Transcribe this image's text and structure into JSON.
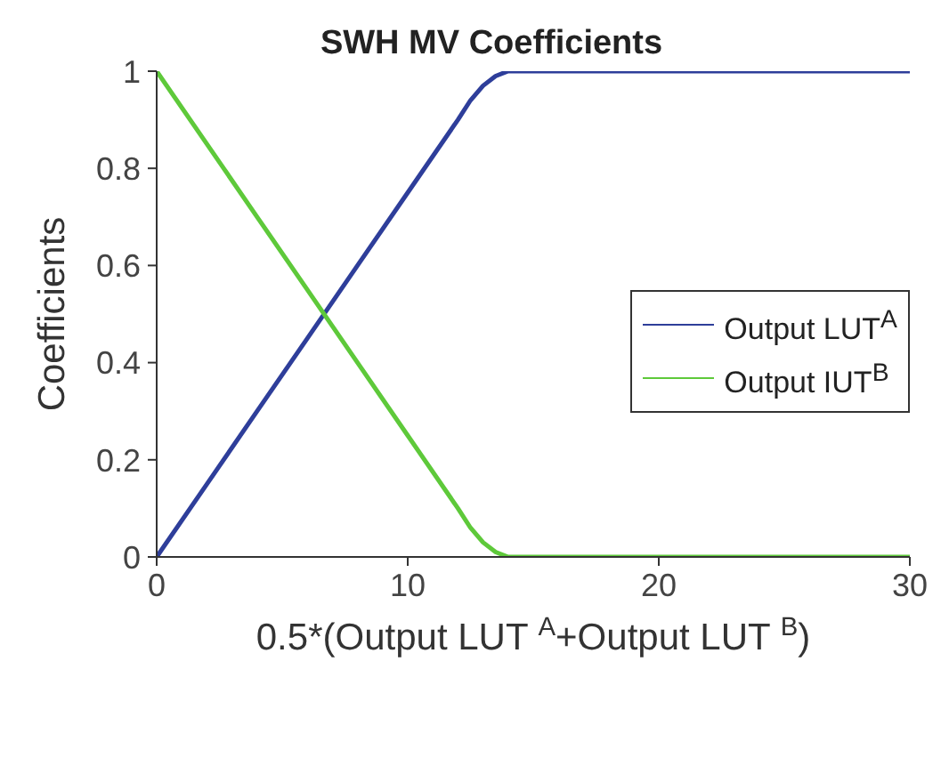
{
  "chart_data": {
    "type": "line",
    "title": "SWH MV Coefficients",
    "xlabel": "0.5*(Output LUT $^{A}$+Output LUT $^{B}$)",
    "ylabel": "Coefficients",
    "xlim": [
      0,
      30
    ],
    "xticks": [
      0,
      10,
      20,
      30
    ],
    "ylim": [
      0,
      1
    ],
    "yticks": [
      0,
      0.2,
      0.4,
      0.6,
      0.8,
      1
    ],
    "grid": false,
    "legend": "right",
    "marker": "none",
    "line_style": "solid",
    "series": [
      {
        "name": "Output LUT$^{A}$",
        "color": "#2e3e9a",
        "x": [
          0,
          2,
          4,
          6,
          8,
          10,
          12,
          12.5,
          13,
          13.5,
          14,
          20,
          30
        ],
        "values": [
          0,
          0.15,
          0.3,
          0.45,
          0.6,
          0.75,
          0.9,
          0.94,
          0.97,
          0.99,
          1,
          1,
          1
        ]
      },
      {
        "name": "Output IUT$^{B}$",
        "color": "#5ec93a",
        "x": [
          0,
          2,
          4,
          6,
          8,
          10,
          12,
          12.5,
          13,
          13.5,
          14,
          20,
          30
        ],
        "values": [
          1,
          0.85,
          0.7,
          0.55,
          0.4,
          0.25,
          0.1,
          0.06,
          0.03,
          0.01,
          0,
          0,
          0
        ]
      }
    ]
  }
}
